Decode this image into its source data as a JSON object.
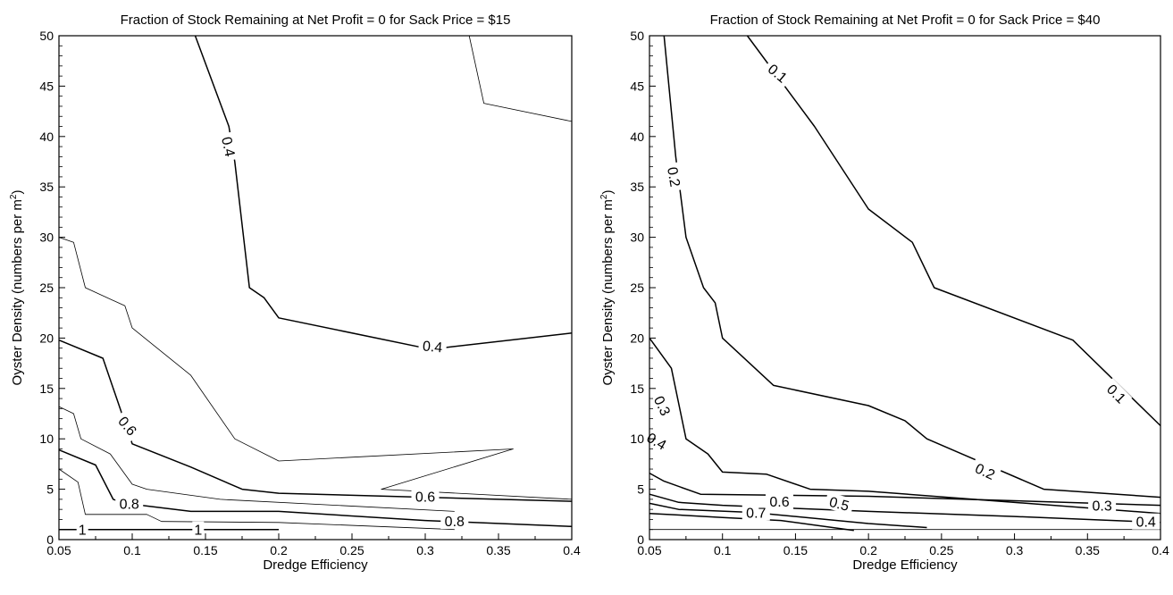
{
  "chart_data": [
    {
      "type": "line",
      "subtype": "contour",
      "title": "Fraction of Stock Remaining at Net Profit = 0 for Sack Price = $15",
      "xlabel": "Dredge Efficiency",
      "ylabel": "Oyster Density (numbers per m",
      "ylabel_sup": "2",
      "ylabel_close": ")",
      "xlim": [
        0.05,
        0.4
      ],
      "ylim": [
        0,
        50
      ],
      "xticks": [
        0.05,
        0.1,
        0.15,
        0.2,
        0.25,
        0.3,
        0.35,
        0.4
      ],
      "xtick_labels": [
        "0.05",
        "0.1",
        "0.15",
        "0.2",
        "0.25",
        "0.3",
        "0.35",
        "0.4"
      ],
      "yticks": [
        0,
        5,
        10,
        15,
        20,
        25,
        30,
        35,
        40,
        45,
        50
      ],
      "ytick_labels": [
        "0",
        "5",
        "10",
        "15",
        "20",
        "25",
        "30",
        "35",
        "40",
        "45",
        "50"
      ],
      "grid": false,
      "series": [
        {
          "level": "0.4",
          "weight": "major",
          "points": [
            [
              0.143,
              50
            ],
            [
              0.166,
              41
            ],
            [
              0.17,
              37.5
            ],
            [
              0.18,
              25
            ],
            [
              0.19,
              24
            ],
            [
              0.2,
              22
            ],
            [
              0.3,
              19
            ],
            [
              0.31,
              19
            ],
            [
              0.4,
              20.5
            ]
          ]
        },
        {
          "level": "",
          "weight": "minor",
          "points": [
            [
              0.33,
              50
            ],
            [
              0.34,
              43.3
            ],
            [
              0.4,
              41.5
            ]
          ]
        },
        {
          "level": "",
          "weight": "minor",
          "points": [
            [
              0.05,
              30
            ],
            [
              0.06,
              29.5
            ],
            [
              0.068,
              25
            ],
            [
              0.095,
              23.2
            ],
            [
              0.1,
              21
            ],
            [
              0.14,
              16.3
            ],
            [
              0.17,
              10
            ],
            [
              0.2,
              7.8
            ],
            [
              0.36,
              9
            ],
            [
              0.27,
              5
            ],
            [
              0.4,
              4
            ]
          ]
        },
        {
          "level": "0.6",
          "weight": "major",
          "points": [
            [
              0.05,
              19.8
            ],
            [
              0.08,
              18
            ],
            [
              0.1,
              9.5
            ],
            [
              0.14,
              7.2
            ],
            [
              0.175,
              5
            ],
            [
              0.2,
              4.6
            ],
            [
              0.3,
              4.2
            ],
            [
              0.4,
              3.8
            ]
          ]
        },
        {
          "level": "",
          "weight": "minor",
          "points": [
            [
              0.05,
              13.2
            ],
            [
              0.06,
              12.5
            ],
            [
              0.065,
              10
            ],
            [
              0.085,
              8.5
            ],
            [
              0.1,
              5.5
            ],
            [
              0.11,
              5
            ],
            [
              0.16,
              4
            ],
            [
              0.32,
              2.8
            ]
          ]
        },
        {
          "level": "0.8",
          "weight": "major",
          "points": [
            [
              0.05,
              8.9
            ],
            [
              0.075,
              7.4
            ],
            [
              0.087,
              4
            ],
            [
              0.095,
              3.6
            ],
            [
              0.14,
              2.8
            ],
            [
              0.2,
              2.8
            ],
            [
              0.3,
              1.9
            ],
            [
              0.4,
              1.3
            ]
          ]
        },
        {
          "level": "",
          "weight": "minor",
          "points": [
            [
              0.05,
              7
            ],
            [
              0.063,
              5.7
            ],
            [
              0.068,
              2.5
            ],
            [
              0.11,
              2.5
            ],
            [
              0.12,
              1.8
            ],
            [
              0.2,
              1.7
            ],
            [
              0.32,
              1
            ]
          ]
        },
        {
          "level": "1",
          "weight": "major",
          "points": [
            [
              0.05,
              1
            ],
            [
              0.2,
              1
            ]
          ]
        }
      ]
    },
    {
      "type": "line",
      "subtype": "contour",
      "title": "Fraction of Stock Remaining at Net Profit = 0 for Sack Price = $40",
      "xlabel": "Dredge Efficiency",
      "ylabel": "Oyster Density (numbers per m",
      "ylabel_sup": "2",
      "ylabel_close": ")",
      "xlim": [
        0.05,
        0.4
      ],
      "ylim": [
        0,
        50
      ],
      "xticks": [
        0.05,
        0.1,
        0.15,
        0.2,
        0.25,
        0.3,
        0.35,
        0.4
      ],
      "xtick_labels": [
        "0.05",
        "0.1",
        "0.15",
        "0.2",
        "0.25",
        "0.3",
        "0.35",
        "0.4"
      ],
      "yticks": [
        0,
        5,
        10,
        15,
        20,
        25,
        30,
        35,
        40,
        45,
        50
      ],
      "ytick_labels": [
        "0",
        "5",
        "10",
        "15",
        "20",
        "25",
        "30",
        "35",
        "40",
        "45",
        "50"
      ],
      "grid": false,
      "series": [
        {
          "level": "0.1",
          "weight": "major",
          "points": [
            [
              0.117,
              50
            ],
            [
              0.163,
              41
            ],
            [
              0.2,
              32.8
            ],
            [
              0.23,
              29.5
            ],
            [
              0.245,
              25
            ],
            [
              0.34,
              19.8
            ],
            [
              0.4,
              11.3
            ]
          ]
        },
        {
          "level": "0.2",
          "weight": "major",
          "points": [
            [
              0.06,
              50
            ],
            [
              0.068,
              38
            ],
            [
              0.075,
              30
            ],
            [
              0.087,
              25
            ],
            [
              0.095,
              23.5
            ],
            [
              0.1,
              20
            ],
            [
              0.135,
              15.3
            ],
            [
              0.2,
              13.3
            ],
            [
              0.225,
              11.8
            ],
            [
              0.24,
              10
            ],
            [
              0.32,
              5
            ],
            [
              0.4,
              4.2
            ]
          ]
        },
        {
          "level": "0.3",
          "weight": "major",
          "points": [
            [
              0.05,
              20
            ],
            [
              0.065,
              17
            ],
            [
              0.075,
              10
            ],
            [
              0.09,
              8.5
            ],
            [
              0.1,
              6.7
            ],
            [
              0.13,
              6.5
            ],
            [
              0.16,
              5
            ],
            [
              0.2,
              4.8
            ],
            [
              0.4,
              2.6
            ]
          ]
        },
        {
          "level": "0.4",
          "weight": "major",
          "points": [
            [
              0.05,
              6.6
            ],
            [
              0.06,
              5.8
            ],
            [
              0.085,
              4.5
            ],
            [
              0.2,
              4.3
            ],
            [
              0.4,
              3.4
            ]
          ]
        },
        {
          "level": "0.5",
          "weight": "major",
          "points": [
            [
              0.05,
              4.5
            ],
            [
              0.07,
              3.7
            ],
            [
              0.1,
              3.4
            ],
            [
              0.2,
              2.8
            ],
            [
              0.3,
              2.3
            ],
            [
              0.4,
              1.7
            ]
          ]
        },
        {
          "level": "0.6",
          "weight": "major",
          "points": [
            [
              0.05,
              3.6
            ],
            [
              0.07,
              3
            ],
            [
              0.12,
              2.7
            ],
            [
              0.2,
              1.6
            ],
            [
              0.24,
              1.2
            ]
          ]
        },
        {
          "level": "0.7",
          "weight": "major",
          "points": [
            [
              0.05,
              2.6
            ],
            [
              0.1,
              2.2
            ],
            [
              0.14,
              1.9
            ],
            [
              0.19,
              0.9
            ]
          ]
        },
        {
          "level": "",
          "weight": "minor",
          "points": [
            [
              0.05,
              1
            ],
            [
              0.4,
              1
            ]
          ]
        }
      ]
    }
  ],
  "contour_labels": [
    [
      {
        "text": "0.4",
        "x": 0.166,
        "y": 39,
        "angle": 78
      },
      {
        "text": "0.4",
        "x": 0.305,
        "y": 19.2,
        "angle": 5
      },
      {
        "text": "0.6",
        "x": 0.097,
        "y": 11.3,
        "angle": 50
      },
      {
        "text": "0.6",
        "x": 0.3,
        "y": 4.3,
        "angle": 0
      },
      {
        "text": "0.8",
        "x": 0.098,
        "y": 3.6,
        "angle": 0
      },
      {
        "text": "0.8",
        "x": 0.32,
        "y": 1.85,
        "angle": 0
      },
      {
        "text": "1",
        "x": 0.066,
        "y": 1,
        "angle": 0
      },
      {
        "text": "1",
        "x": 0.145,
        "y": 1,
        "angle": 0
      }
    ],
    [
      {
        "text": "0.1",
        "x": 0.138,
        "y": 46.3,
        "angle": 40
      },
      {
        "text": "0.1",
        "x": 0.37,
        "y": 14.5,
        "angle": 45
      },
      {
        "text": "0.2",
        "x": 0.067,
        "y": 36,
        "angle": 80
      },
      {
        "text": "0.2",
        "x": 0.28,
        "y": 6.8,
        "angle": 25
      },
      {
        "text": "0.3",
        "x": 0.059,
        "y": 13.3,
        "angle": 65
      },
      {
        "text": "0.3",
        "x": 0.36,
        "y": 3.4,
        "angle": 0
      },
      {
        "text": "0.4",
        "x": 0.055,
        "y": 9.8,
        "angle": 30
      },
      {
        "text": "0.4",
        "x": 0.39,
        "y": 1.8,
        "angle": 0
      },
      {
        "text": "0.5",
        "x": 0.18,
        "y": 3.6,
        "angle": 15
      },
      {
        "text": "0.6",
        "x": 0.139,
        "y": 3.8,
        "angle": 0
      },
      {
        "text": "0.7",
        "x": 0.123,
        "y": 2.7,
        "angle": 0
      }
    ]
  ]
}
